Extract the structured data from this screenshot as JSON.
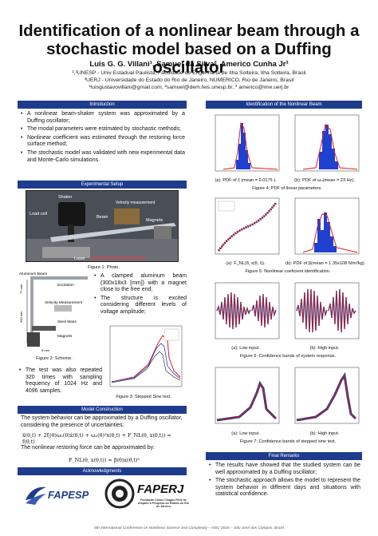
{
  "header": {
    "title_line1": "Identification of a nonlinear beam through a",
    "title_line2": "stochastic model based on a Duffing oscillator",
    "authors": "Luis G. G. Villani¹, Samuel da Silva², Americo Cunha Jr³",
    "affil1": "¹,²UNESP - Univ Estadual Paulista, Faculdade de Engenharia de Ilha Solteira, Ilha Solteira, Brasil",
    "affil2": "³UERJ - Universidade do Estado do Rio de Janeiro, NUMERICO, Rio de Janeiro, Brasil",
    "affil3": "¹luisgustavovillani@gmail.com, ²samuel@dem.feis.unesp.br, ³ americo@ime.uerj.br"
  },
  "sections": {
    "introduction": "Introduction",
    "experimental_setup": "Experimental Setup",
    "model_construction": "Model Construction",
    "acknowledgments": "Acknowledgments",
    "identification": "Identification of the Nonlinear Beam",
    "final_remarks": "Final Remarks"
  },
  "intro_bullets": [
    "A nonlinear beam-shaker system was approximated by a Duffing oscillator;",
    "The modal parameters were estimated by stochastic methods;",
    "Nonlinear coefficient was estimated through the restoring force surface method;",
    "The stochastic model was validated with new experimental data and Monte-Carlo simulations."
  ],
  "photo_labels": {
    "shaker": "Shaker",
    "load_cell": "Load cell",
    "velocity": "Velocity measurement",
    "beam": "Beam",
    "magnets": "Magnets",
    "laser": "Laser"
  },
  "figure1_caption": "Figure 1: Photo.",
  "scheme_labels": {
    "aluminum_beam": "Aluminum Beam",
    "excitation": "Excitation",
    "velocity_measurement": "Velocity Measurement",
    "steel_mass": "Steel Mass",
    "magnets": "Magnets",
    "dim_77": "77 mm",
    "dim_300": "300 mm",
    "dim_5": "5 mm"
  },
  "figure2_caption": "Figure 2: Scheme.",
  "setup_bullets": [
    "A clamped aluminum beam (300x18x3 [mm]) with a magnet close to the free end;",
    "The structure is excited considering different levels of voltage amplitude;"
  ],
  "test_bullet": "The test was also repeated 320 times with sampling frequency of 1024 Hz and 4096 samples.",
  "figure3_caption": "Figure 3: Stepped Sine test.",
  "model_text1": "The system behavior can be approximated by a Duffing oscillator, considering the presence of uncertainties:",
  "model_eq1": "ẍ(θ,t) + 2ξ(θ)ωₙ(θ)ẋ(θ,t) + ωₙ(θ)²x(θ,t) + F_NL(θ, x(θ,t)) = f(θ,t)",
  "model_text2": "The nonlinear restoring force can be approximated by:",
  "model_eq2": "F_NL(θ, x(θ,t)) ≈ β(θ)x(θ,t)³",
  "logos": {
    "fapesp": "FAPESP",
    "faperj": "FAPERJ",
    "faperj_sub": "Fundação Carlos Chagas Filho de Amparo à Pesquisa do Estado do Rio de Janeiro"
  },
  "fig4": {
    "cap_a": "(a): PDF of ξ (mean = 0.0175 ).",
    "cap_b": "(b): PDF of ωₙ(mean = 23 Hz).",
    "caption": "Figure 4: PDF of linear parameters."
  },
  "fig5": {
    "cap_a": "(a): F_NL(θ, x(θ, t)).",
    "cap_b": "(b): PDF of β(mean = 1.35x108 N/m³kg).",
    "caption": "Figure 5: Nonlinear coeficient identification."
  },
  "fig6": {
    "cap_a": "(a): Low input.",
    "cap_b": "(b): High input.",
    "caption": "Figure 6: Confidence bands of system response."
  },
  "fig7": {
    "cap_a": "(a): Low input.",
    "cap_b": "(b): High input.",
    "caption": "Figure 7: Confidence bands of stepped sine test."
  },
  "final_bullets": [
    "The results have showed that the studied system can be well approximated by a Duffing oscillator;",
    "The stochastic approach allows the model to represent the system behavior in different days and situations with statistical confidence."
  ],
  "footer": "6th International Conference on Nonlinear Science and Complexity – NSC-2016 – São José dos Campos, Brazil",
  "colors": {
    "bar_blue": "#1f3c8c",
    "red": "#e01b1b",
    "blue": "#2040d0"
  }
}
